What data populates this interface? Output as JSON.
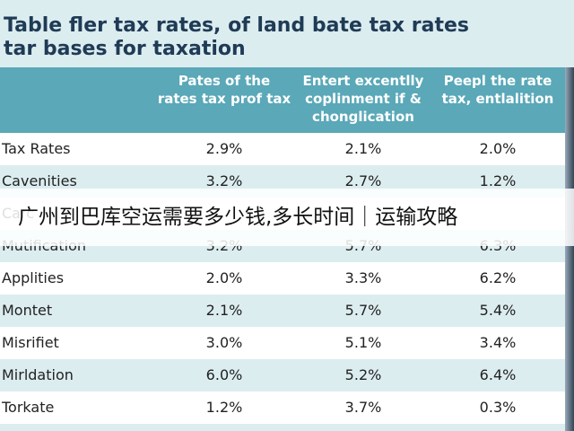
{
  "header": {
    "title_lines": [
      "Table fler tax rates, of land bate tax rates",
      "tar bases for taxation"
    ]
  },
  "table": {
    "columns": [
      "Pates of the rates tax prof tax",
      "Entert excentlly coplinment if & chonglication",
      "Peepl the rate tax, entlalition"
    ],
    "rows": [
      [
        "Tax Rates",
        "2.9%",
        "2.1%",
        "2.0%"
      ],
      [
        "Cavenities",
        "3.2%",
        "2.7%",
        "1.2%"
      ],
      [
        "Carc",
        null,
        null,
        null
      ],
      [
        "Mutification",
        "3.2%",
        "5.7%",
        "6.3%"
      ],
      [
        "Applities",
        "2.0%",
        "3.3%",
        "6.2%"
      ],
      [
        "Montet",
        "2.1%",
        "5.7%",
        "5.4%"
      ],
      [
        "Misrifiet",
        "3.0%",
        "5.1%",
        "3.4%"
      ],
      [
        "Mirldation",
        "6.0%",
        "5.2%",
        "6.4%"
      ],
      [
        "Torkate",
        "1.2%",
        "3.7%",
        "0.3%"
      ]
    ]
  },
  "overlay": {
    "text": "广州到巴库空运需要多少钱,多长时间｜运输攻略"
  }
}
